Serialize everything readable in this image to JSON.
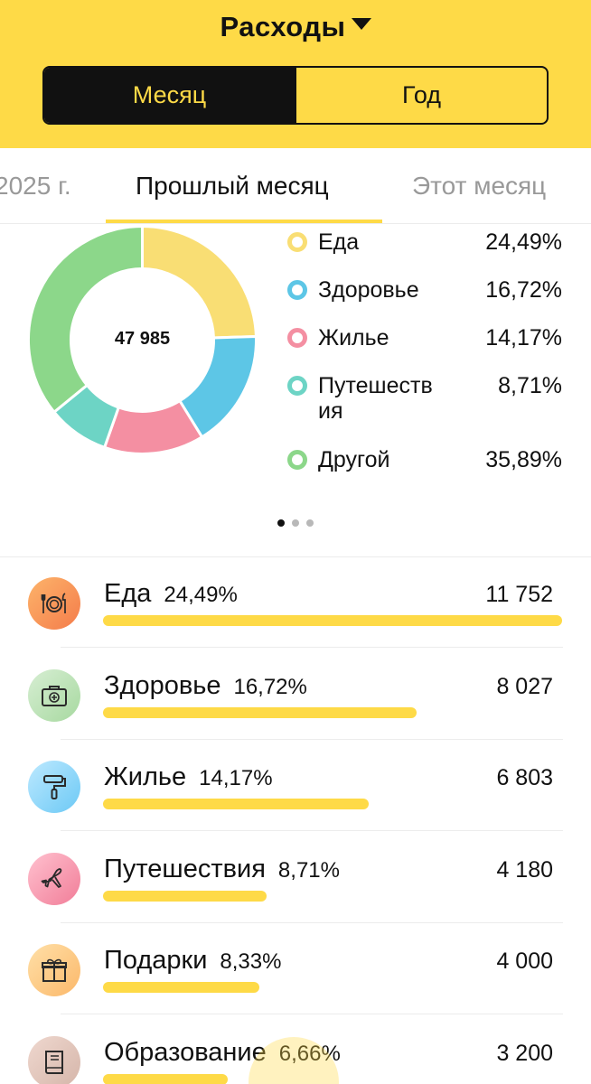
{
  "header": {
    "title": "Расходы",
    "title_icon": "caret-down-icon",
    "segment": {
      "month_label": "Месяц",
      "year_label": "Год",
      "selected": "Месяц"
    },
    "accent_color": "#FEDA47"
  },
  "period_tabs": {
    "prev": "2025 г.",
    "current": "Прошлый месяц",
    "next": "Этот месяц"
  },
  "chart": {
    "total": "47 985",
    "pager": {
      "pages": 3,
      "current": 1
    }
  },
  "chart_data": {
    "type": "pie",
    "categories": [
      "Еда",
      "Здоровье",
      "Жилье",
      "Путешествия",
      "Другой"
    ],
    "values": [
      24.49,
      16.72,
      14.17,
      8.71,
      35.89
    ],
    "colors": [
      "#F9DE74",
      "#5DC6E6",
      "#F48FA2",
      "#6DD4C5",
      "#8CD78A"
    ],
    "center_label": "47 985"
  },
  "legend": [
    {
      "name": "Еда",
      "pct": "24,49%",
      "color": "#F9DE74"
    },
    {
      "name": "Здоровье",
      "pct": "16,72%",
      "color": "#5DC6E6"
    },
    {
      "name": "Жилье",
      "pct": "14,17%",
      "color": "#F48FA2"
    },
    {
      "name": "Путешеств\nия",
      "pct": "8,71%",
      "color": "#6DD4C5"
    },
    {
      "name": "Другой",
      "pct": "35,89%",
      "color": "#8CD78A"
    }
  ],
  "categories": [
    {
      "name": "Еда",
      "pct": "24,49%",
      "amount": "11 752",
      "share": 1.0,
      "icon": "fork-knife-plate-icon"
    },
    {
      "name": "Здоровье",
      "pct": "16,72%",
      "amount": "8 027",
      "share": 0.683,
      "icon": "first-aid-kit-icon"
    },
    {
      "name": "Жилье",
      "pct": "14,17%",
      "amount": "6 803",
      "share": 0.579,
      "icon": "paint-roller-icon"
    },
    {
      "name": "Путешествия",
      "pct": "8,71%",
      "amount": "4 180",
      "share": 0.356,
      "icon": "airplane-icon"
    },
    {
      "name": "Подарки",
      "pct": "8,33%",
      "amount": "4 000",
      "share": 0.34,
      "icon": "gift-icon"
    },
    {
      "name": "Образование",
      "pct": "6,66%",
      "amount": "3 200",
      "share": 0.272,
      "icon": "book-icon"
    }
  ]
}
